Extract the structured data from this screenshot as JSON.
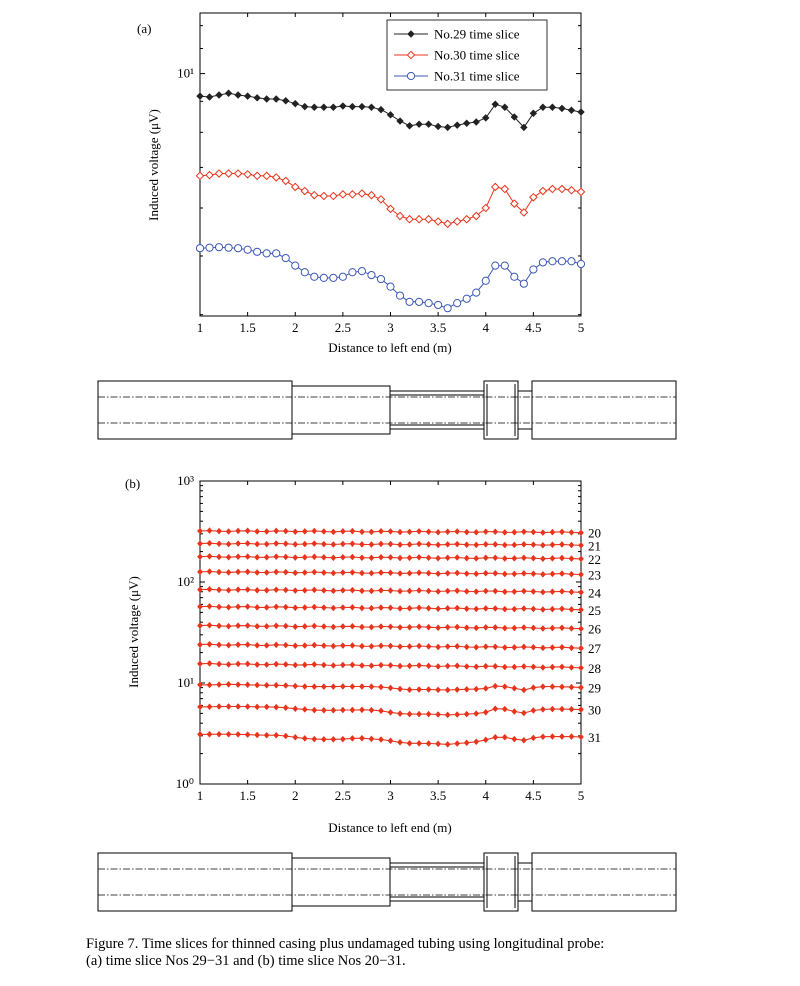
{
  "chart_data": [
    {
      "panel_label": "(a)",
      "type": "line",
      "xlabel": "Distance to left end (m)",
      "ylabel": "Induced voltage (μV)",
      "xlim": [
        1,
        5
      ],
      "ylim_log": [
        3.98,
        12.59
      ],
      "yscale": "log",
      "xtick_labels": [
        "1",
        "1.5",
        "2",
        "2.5",
        "3",
        "3.5",
        "4",
        "4.5",
        "5"
      ],
      "ytick_labels": [
        "10¹"
      ],
      "legend_position": "top-right",
      "x": [
        1.0,
        1.1,
        1.2,
        1.3,
        1.4,
        1.5,
        1.6,
        1.7,
        1.8,
        1.9,
        2.0,
        2.1,
        2.2,
        2.3,
        2.4,
        2.5,
        2.6,
        2.7,
        2.8,
        2.9,
        3.0,
        3.1,
        3.2,
        3.3,
        3.4,
        3.5,
        3.6,
        3.7,
        3.8,
        3.9,
        4.0,
        4.1,
        4.2,
        4.3,
        4.4,
        4.5,
        4.6,
        4.7,
        4.8,
        4.9,
        5.0
      ],
      "series": [
        {
          "name": "No.29 time slice",
          "color": "#222222",
          "marker": "diamond",
          "values": [
            9.18,
            9.15,
            9.22,
            9.28,
            9.22,
            9.18,
            9.12,
            9.08,
            9.08,
            9.02,
            8.92,
            8.82,
            8.8,
            8.8,
            8.8,
            8.84,
            8.82,
            8.82,
            8.8,
            8.72,
            8.55,
            8.35,
            8.2,
            8.25,
            8.25,
            8.18,
            8.15,
            8.22,
            8.28,
            8.32,
            8.45,
            8.9,
            8.8,
            8.48,
            8.15,
            8.6,
            8.8,
            8.8,
            8.76,
            8.7,
            8.64
          ]
        },
        {
          "name": "No.30 time slice",
          "color": "#e8341c",
          "marker": "diamond-open",
          "values": [
            6.78,
            6.8,
            6.84,
            6.84,
            6.84,
            6.82,
            6.78,
            6.78,
            6.74,
            6.65,
            6.5,
            6.4,
            6.3,
            6.28,
            6.28,
            6.32,
            6.32,
            6.34,
            6.3,
            6.2,
            5.98,
            5.82,
            5.75,
            5.75,
            5.75,
            5.7,
            5.65,
            5.7,
            5.75,
            5.82,
            6.0,
            6.5,
            6.45,
            6.1,
            5.9,
            6.25,
            6.4,
            6.45,
            6.45,
            6.42,
            6.38
          ]
        },
        {
          "name": "No.31 time slice",
          "color": "#3c58b8",
          "marker": "circle-open",
          "values": [
            5.15,
            5.16,
            5.17,
            5.16,
            5.15,
            5.12,
            5.08,
            5.05,
            5.05,
            4.96,
            4.82,
            4.7,
            4.62,
            4.6,
            4.6,
            4.62,
            4.7,
            4.72,
            4.65,
            4.58,
            4.45,
            4.3,
            4.2,
            4.2,
            4.18,
            4.15,
            4.1,
            4.18,
            4.25,
            4.35,
            4.55,
            4.82,
            4.82,
            4.62,
            4.5,
            4.75,
            4.88,
            4.9,
            4.9,
            4.9,
            4.85
          ]
        }
      ]
    },
    {
      "panel_label": "(b)",
      "type": "line",
      "xlabel": "Distance to left end (m)",
      "ylabel": "Induced voltage (μV)",
      "xlim": [
        1,
        5
      ],
      "ylim": [
        1,
        1000
      ],
      "yscale": "log",
      "xtick_labels": [
        "1",
        "1.5",
        "2",
        "2.5",
        "3",
        "3.5",
        "4",
        "4.5",
        "5"
      ],
      "ytick_labels": [
        "10⁰",
        "10¹",
        "10²",
        "10³"
      ],
      "x": [
        1.0,
        1.1,
        1.2,
        1.3,
        1.4,
        1.5,
        1.6,
        1.7,
        1.8,
        1.9,
        2.0,
        2.1,
        2.2,
        2.3,
        2.4,
        2.5,
        2.6,
        2.7,
        2.8,
        2.9,
        3.0,
        3.1,
        3.2,
        3.3,
        3.4,
        3.5,
        3.6,
        3.7,
        3.8,
        3.9,
        4.0,
        4.1,
        4.2,
        4.3,
        4.4,
        4.5,
        4.6,
        4.7,
        4.8,
        4.9,
        5.0
      ],
      "series": [
        {
          "name": "20",
          "color": "#e8341c",
          "base": 320,
          "slope": -0.03
        },
        {
          "name": "21",
          "color": "#e8341c",
          "base": 240,
          "slope": -0.03
        },
        {
          "name": "22",
          "color": "#e8341c",
          "base": 178,
          "slope": -0.04
        },
        {
          "name": "23",
          "color": "#e8341c",
          "base": 126,
          "slope": -0.05
        },
        {
          "name": "24",
          "color": "#e8341c",
          "base": 84,
          "slope": -0.05
        },
        {
          "name": "25",
          "color": "#e8341c",
          "base": 57,
          "slope": -0.06
        },
        {
          "name": "26",
          "color": "#e8341c",
          "base": 37,
          "slope": -0.06
        },
        {
          "name": "27",
          "color": "#e8341c",
          "base": 24,
          "slope": -0.07
        },
        {
          "name": "28",
          "color": "#e8341c",
          "base": 15.5,
          "slope": -0.08
        },
        {
          "name": "29",
          "color": "#e8341c",
          "base": 9.6,
          "shape": "a29"
        },
        {
          "name": "30",
          "color": "#e8341c",
          "base": 5.8,
          "shape": "a30"
        },
        {
          "name": "31",
          "color": "#e8341c",
          "base": 3.1,
          "shape": "a31"
        }
      ]
    }
  ],
  "caption": {
    "line1": "Figure 7.  Time slices for thinned casing plus undamaged tubing using longitudinal probe:",
    "line2": "(a) time slice Nos 29−31 and (b) time slice Nos 20−31."
  }
}
